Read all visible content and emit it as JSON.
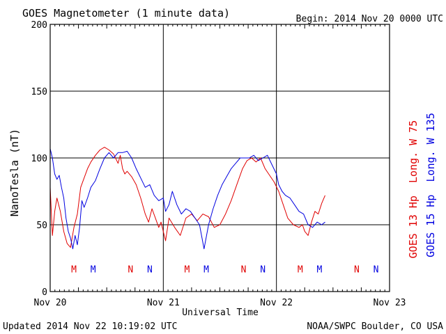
{
  "colors": {
    "goes13": "#e00000",
    "goes15": "#0000e0",
    "axis": "#000000"
  },
  "chart_data": {
    "type": "line",
    "title": "GOES Magnetometer (1 minute data)",
    "begin": "Begin:  2014 Nov 20 0000 UTC",
    "xlabel": "Universal Time",
    "ylabel": "NanoTesla (nT)",
    "xlim": [
      0,
      3
    ],
    "ylim": [
      0,
      200
    ],
    "x_ticks": [
      0,
      1,
      2,
      3
    ],
    "x_tick_labels": [
      "Nov 20",
      "Nov 21",
      "Nov 22",
      "Nov 23"
    ],
    "y_ticks": [
      0,
      50,
      100,
      150,
      200
    ],
    "y_tick_labels": [
      "0",
      "50",
      "100",
      "150",
      "200"
    ],
    "grid": true,
    "series": [
      {
        "name": "GOES 13 Hp  Long. W 75",
        "color": "#e00000",
        "x": [
          0.0,
          0.02,
          0.04,
          0.06,
          0.09,
          0.12,
          0.15,
          0.18,
          0.21,
          0.24,
          0.27,
          0.3,
          0.33,
          0.36,
          0.4,
          0.44,
          0.48,
          0.52,
          0.56,
          0.6,
          0.62,
          0.64,
          0.66,
          0.68,
          0.72,
          0.76,
          0.8,
          0.84,
          0.87,
          0.9,
          0.93,
          0.96,
          0.98,
          1.0,
          1.02,
          1.05,
          1.1,
          1.15,
          1.2,
          1.25,
          1.3,
          1.35,
          1.4,
          1.45,
          1.5,
          1.55,
          1.6,
          1.65,
          1.7,
          1.74,
          1.78,
          1.82,
          1.86,
          1.9,
          1.94,
          1.98,
          2.02,
          2.06,
          2.1,
          2.15,
          2.2,
          2.23,
          2.25,
          2.28,
          2.31,
          2.34,
          2.37,
          2.4,
          2.43
        ],
        "values": [
          78,
          42,
          60,
          70,
          60,
          45,
          36,
          33,
          48,
          58,
          78,
          85,
          92,
          97,
          102,
          106,
          108,
          106,
          103,
          96,
          102,
          92,
          88,
          90,
          86,
          80,
          70,
          58,
          52,
          62,
          55,
          48,
          52,
          45,
          38,
          55,
          48,
          42,
          55,
          58,
          53,
          58,
          56,
          48,
          50,
          58,
          68,
          80,
          92,
          98,
          100,
          97,
          100,
          92,
          87,
          82,
          75,
          65,
          55,
          50,
          48,
          50,
          45,
          42,
          52,
          60,
          58,
          66,
          72
        ]
      },
      {
        "name": "GOES 15 Hp  Long. W 135",
        "color": "#0000e0",
        "x": [
          0.0,
          0.02,
          0.04,
          0.06,
          0.08,
          0.1,
          0.12,
          0.14,
          0.16,
          0.18,
          0.2,
          0.22,
          0.24,
          0.26,
          0.28,
          0.3,
          0.33,
          0.36,
          0.4,
          0.44,
          0.48,
          0.52,
          0.56,
          0.6,
          0.64,
          0.68,
          0.72,
          0.76,
          0.8,
          0.84,
          0.88,
          0.92,
          0.96,
          1.0,
          1.02,
          1.05,
          1.08,
          1.12,
          1.16,
          1.2,
          1.24,
          1.28,
          1.32,
          1.36,
          1.4,
          1.44,
          1.48,
          1.52,
          1.56,
          1.6,
          1.64,
          1.68,
          1.72,
          1.76,
          1.8,
          1.84,
          1.88,
          1.92,
          1.96,
          2.0,
          2.02,
          2.05,
          2.08,
          2.12,
          2.16,
          2.2,
          2.24,
          2.28,
          2.32,
          2.36,
          2.4,
          2.43
        ],
        "values": [
          107,
          100,
          88,
          84,
          87,
          78,
          70,
          55,
          45,
          40,
          32,
          42,
          35,
          48,
          68,
          63,
          70,
          78,
          83,
          92,
          100,
          104,
          100,
          104,
          104,
          105,
          100,
          92,
          85,
          78,
          80,
          72,
          68,
          70,
          60,
          65,
          75,
          65,
          58,
          62,
          60,
          55,
          50,
          32,
          50,
          62,
          72,
          80,
          86,
          92,
          96,
          100,
          100,
          100,
          102,
          98,
          100,
          102,
          95,
          88,
          80,
          75,
          72,
          70,
          65,
          60,
          58,
          50,
          48,
          52,
          50,
          52
        ]
      }
    ],
    "markers": {
      "goes13": {
        "color": "#e00000",
        "items": [
          {
            "label": "M",
            "x": 0.21
          },
          {
            "label": "N",
            "x": 0.71
          },
          {
            "label": "M",
            "x": 1.21
          },
          {
            "label": "N",
            "x": 1.71
          },
          {
            "label": "M",
            "x": 2.21
          },
          {
            "label": "N",
            "x": 2.71
          }
        ]
      },
      "goes15": {
        "color": "#0000e0",
        "items": [
          {
            "label": "M",
            "x": 0.38
          },
          {
            "label": "N",
            "x": 0.88
          },
          {
            "label": "M",
            "x": 1.38
          },
          {
            "label": "N",
            "x": 1.88
          },
          {
            "label": "M",
            "x": 2.38
          },
          {
            "label": "N",
            "x": 2.88
          }
        ]
      },
      "level": 17
    }
  },
  "footer": {
    "updated": "Updated 2014 Nov 22 10:19:02 UTC",
    "credit": "NOAA/SWPC Boulder, CO USA"
  }
}
